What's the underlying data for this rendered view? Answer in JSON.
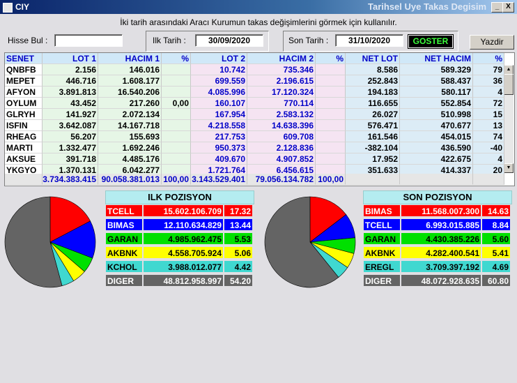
{
  "window": {
    "app_title": "CIY",
    "title": "Tarihsel Uye Takas Degisim",
    "minimize": "_",
    "close": "X"
  },
  "instruction": "İki tarih arasındaki  Aracı Kurumun takas değişimlerini görmek için kullanılır.",
  "filters": {
    "hisse_label": "Hisse Bul :",
    "hisse_value": "",
    "ilk_label": "Ilk Tarih :",
    "ilk_value": "30/09/2020",
    "son_label": "Son Tarih :",
    "son_value": "31/10/2020",
    "goster": "GOSTER",
    "yazdir": "Yazdir"
  },
  "grid": {
    "headers": [
      "SENET",
      "LOT 1",
      "HACIM 1",
      "%",
      "LOT 2",
      "HACIM 2",
      "%",
      "NET LOT",
      "NET HACIM",
      "%"
    ],
    "rows": [
      [
        "QNBFB",
        "2.156",
        "146.016",
        "",
        "10.742",
        "735.346",
        "",
        "8.586",
        "589.329",
        "79"
      ],
      [
        "MEPET",
        "446.716",
        "1.608.177",
        "",
        "699.559",
        "2.196.615",
        "",
        "252.843",
        "588.437",
        "36"
      ],
      [
        "AFYON",
        "3.891.813",
        "16.540.206",
        "",
        "4.085.996",
        "17.120.324",
        "",
        "194.183",
        "580.117",
        "4"
      ],
      [
        "OYLUM",
        "43.452",
        "217.260",
        "0,00",
        "160.107",
        "770.114",
        "",
        "116.655",
        "552.854",
        "72"
      ],
      [
        "GLRYH",
        "141.927",
        "2.072.134",
        "",
        "167.954",
        "2.583.132",
        "",
        "26.027",
        "510.998",
        "15"
      ],
      [
        "ISFIN",
        "3.642.087",
        "14.167.718",
        "",
        "4.218.558",
        "14.638.396",
        "",
        "576.471",
        "470.677",
        "13"
      ],
      [
        "RHEAG",
        "56.207",
        "155.693",
        "",
        "217.753",
        "609.708",
        "",
        "161.546",
        "454.015",
        "74"
      ],
      [
        "MARTI",
        "1.332.477",
        "1.692.246",
        "",
        "950.373",
        "2.128.836",
        "",
        "-382.104",
        "436.590",
        "-40"
      ],
      [
        "AKSUE",
        "391.718",
        "4.485.176",
        "",
        "409.670",
        "4.907.852",
        "",
        "17.952",
        "422.675",
        "4"
      ],
      [
        "YKGYO",
        "1.370.131",
        "6.042.277",
        "",
        "1.721.764",
        "6.456.615",
        "",
        "351.633",
        "414.337",
        "20"
      ]
    ],
    "totals": [
      "",
      "3.734.383.415",
      "90.058.381.013",
      "100,00",
      "3.143.529.401",
      "79.056.134.782",
      "100,00",
      "",
      "",
      ""
    ]
  },
  "ilk": {
    "title": "ILK POZISYON",
    "rows": [
      {
        "name": "TCELL",
        "value": "15.602.106.709",
        "pct": "17.32",
        "color": "#ff0000"
      },
      {
        "name": "BIMAS",
        "value": "12.110.634.829",
        "pct": "13.44",
        "color": "#0000ff"
      },
      {
        "name": "GARAN",
        "value": "4.985.962.475",
        "pct": "5.53",
        "color": "#00e000"
      },
      {
        "name": "AKBNK",
        "value": "4.558.705.924",
        "pct": "5.06",
        "color": "#ffff00"
      },
      {
        "name": "KCHOL",
        "value": "3.988.012.077",
        "pct": "4.42",
        "color": "#40d8d0"
      },
      {
        "name": "DIGER",
        "value": "48.812.958.997",
        "pct": "54.20",
        "color": "#646464"
      }
    ]
  },
  "son": {
    "title": "SON POZISYON",
    "rows": [
      {
        "name": "BIMAS",
        "value": "11.568.007.300",
        "pct": "14.63",
        "color": "#ff0000"
      },
      {
        "name": "TCELL",
        "value": "6.993.015.885",
        "pct": "8.84",
        "color": "#0000ff"
      },
      {
        "name": "GARAN",
        "value": "4.430.385.226",
        "pct": "5.60",
        "color": "#00e000"
      },
      {
        "name": "AKBNK",
        "value": "4.282.400.541",
        "pct": "5.41",
        "color": "#ffff00"
      },
      {
        "name": "EREGL",
        "value": "3.709.397.192",
        "pct": "4.69",
        "color": "#40d8d0"
      },
      {
        "name": "DIGER",
        "value": "48.072.928.635",
        "pct": "60.80",
        "color": "#646464"
      }
    ]
  }
}
